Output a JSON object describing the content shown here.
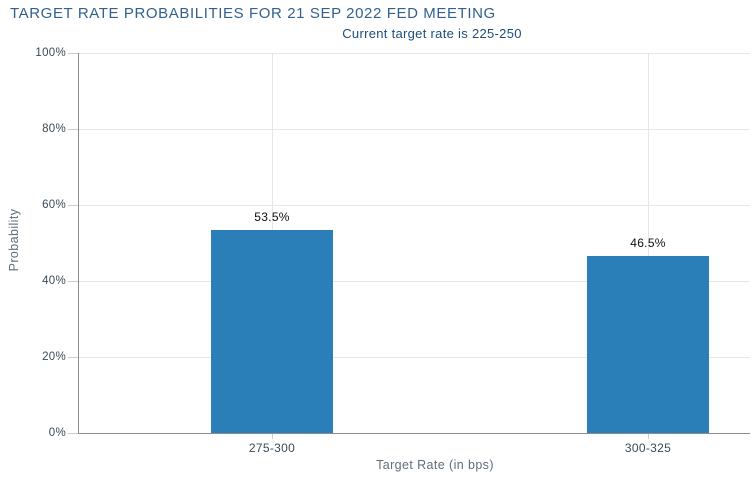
{
  "chart_data": {
    "type": "bar",
    "title": "TARGET RATE PROBABILITIES FOR 21 SEP 2022 FED MEETING",
    "subtitle": "Current target rate is 225-250",
    "categories": [
      "275-300",
      "300-325"
    ],
    "values": [
      53.5,
      46.5
    ],
    "value_labels": [
      "53.5%",
      "46.5%"
    ],
    "xlabel": "Target Rate (in bps)",
    "ylabel": "Probability",
    "ylim": [
      0,
      100
    ],
    "yticks": [
      0,
      20,
      40,
      60,
      80,
      100
    ],
    "ytick_labels": [
      "0%",
      "20%",
      "40%",
      "60%",
      "80%",
      "100%"
    ],
    "grid": true,
    "legend": "none",
    "colors": {
      "bar": "#2a7fb8",
      "title": "#31618c",
      "subtitle": "#1c4e79",
      "grid": "#e6e6e6",
      "axis_line": "#8c8c8c",
      "tick": "#cccccc",
      "tick_label": "#3b4a55",
      "axis_title": "#5f6e7a",
      "value_label": "#111111",
      "background": "#ffffff"
    }
  }
}
